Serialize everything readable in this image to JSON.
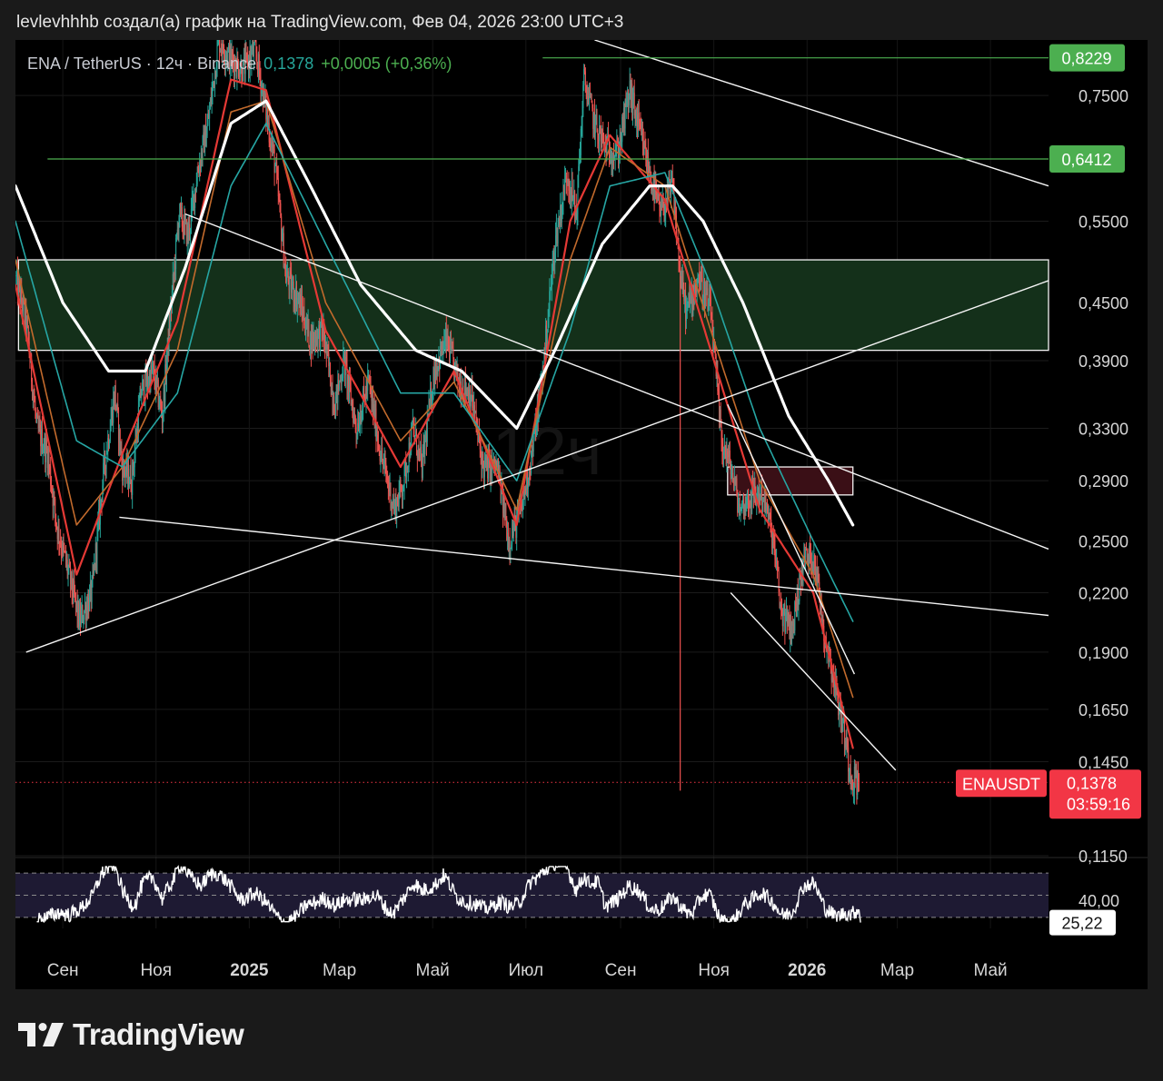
{
  "header": {
    "caption": "levlevhhhb создал(а) график на TradingView.com, Фев 04, 2026 23:00 UTC+3"
  },
  "legend": {
    "symbol": "ENA / TetherUS · 12ч · Binance",
    "last": "0,1378",
    "change": "+0,0005 (+0,36%)"
  },
  "watermark": "12ч",
  "footer": {
    "brand": "TradingView"
  },
  "colors": {
    "background": "#000000",
    "up": "#26a69a",
    "down": "#ef5350",
    "ma_white": "#ffffff",
    "ma_red": "#e53935",
    "ma_orange": "#c26a2c",
    "ma_teal": "#26a6a4",
    "zone_green": "#14301a",
    "zone_red": "#3a0f16",
    "level_green": "#4caf50",
    "price_badge": "#f23645"
  },
  "chart_data": {
    "type": "candlestick",
    "symbol": "ENAUSDT",
    "timeframe": "12ч",
    "y_scale": "log",
    "y_ticks": [
      "0,7500",
      "0,5500",
      "0,4500",
      "0,3900",
      "0,3300",
      "0,2900",
      "0,2500",
      "0,2200",
      "0,1900",
      "0,1650",
      "0,1450",
      "0,1150"
    ],
    "x_ticks": [
      "Сен",
      "Ноя",
      "2025",
      "Мар",
      "Май",
      "Июл",
      "Сен",
      "Ноя",
      "2026",
      "Мар",
      "Май"
    ],
    "x_tick_bold": [
      false,
      false,
      true,
      false,
      false,
      false,
      false,
      false,
      true,
      false,
      false
    ],
    "x_range": [
      "2024-08-01",
      "2026-06-08"
    ],
    "ylim": [
      0.115,
      0.86
    ],
    "price_path": [
      [
        "2024-08-01",
        0.48
      ],
      [
        "2024-08-08",
        0.43
      ],
      [
        "2024-08-15",
        0.33
      ],
      [
        "2024-08-22",
        0.31
      ],
      [
        "2024-08-28",
        0.26
      ],
      [
        "2024-09-05",
        0.23
      ],
      [
        "2024-09-12",
        0.205
      ],
      [
        "2024-09-20",
        0.22
      ],
      [
        "2024-09-28",
        0.3
      ],
      [
        "2024-10-05",
        0.36
      ],
      [
        "2024-10-10",
        0.3
      ],
      [
        "2024-10-16",
        0.29
      ],
      [
        "2024-10-22",
        0.36
      ],
      [
        "2024-10-30",
        0.38
      ],
      [
        "2024-11-05",
        0.34
      ],
      [
        "2024-11-10",
        0.43
      ],
      [
        "2024-11-16",
        0.56
      ],
      [
        "2024-11-22",
        0.53
      ],
      [
        "2024-11-28",
        0.62
      ],
      [
        "2024-12-05",
        0.7
      ],
      [
        "2024-12-12",
        0.86
      ],
      [
        "2024-12-20",
        0.82
      ],
      [
        "2024-12-28",
        0.8
      ],
      [
        "2025-01-05",
        0.84
      ],
      [
        "2025-01-12",
        0.72
      ],
      [
        "2025-01-18",
        0.63
      ],
      [
        "2025-01-25",
        0.48
      ],
      [
        "2025-02-03",
        0.45
      ],
      [
        "2025-02-10",
        0.41
      ],
      [
        "2025-02-18",
        0.42
      ],
      [
        "2025-02-26",
        0.35
      ],
      [
        "2025-03-04",
        0.39
      ],
      [
        "2025-03-12",
        0.33
      ],
      [
        "2025-03-20",
        0.37
      ],
      [
        "2025-03-28",
        0.31
      ],
      [
        "2025-04-06",
        0.27
      ],
      [
        "2025-04-12",
        0.29
      ],
      [
        "2025-04-18",
        0.33
      ],
      [
        "2025-04-24",
        0.3
      ],
      [
        "2025-05-02",
        0.38
      ],
      [
        "2025-05-10",
        0.41
      ],
      [
        "2025-05-18",
        0.37
      ],
      [
        "2025-05-26",
        0.36
      ],
      [
        "2025-06-03",
        0.3
      ],
      [
        "2025-06-12",
        0.3
      ],
      [
        "2025-06-20",
        0.25
      ],
      [
        "2025-06-28",
        0.27
      ],
      [
        "2025-07-05",
        0.31
      ],
      [
        "2025-07-12",
        0.38
      ],
      [
        "2025-07-20",
        0.52
      ],
      [
        "2025-07-28",
        0.62
      ],
      [
        "2025-08-03",
        0.56
      ],
      [
        "2025-08-08",
        0.78
      ],
      [
        "2025-08-15",
        0.7
      ],
      [
        "2025-08-22",
        0.66
      ],
      [
        "2025-08-30",
        0.65
      ],
      [
        "2025-09-07",
        0.76
      ],
      [
        "2025-09-14",
        0.68
      ],
      [
        "2025-09-20",
        0.62
      ],
      [
        "2025-09-27",
        0.56
      ],
      [
        "2025-10-05",
        0.6
      ],
      [
        "2025-10-10",
        0.48
      ],
      [
        "2025-10-14",
        0.44
      ],
      [
        "2025-10-22",
        0.48
      ],
      [
        "2025-10-30",
        0.44
      ],
      [
        "2025-11-06",
        0.32
      ],
      [
        "2025-11-12",
        0.3
      ],
      [
        "2025-11-18",
        0.27
      ],
      [
        "2025-11-26",
        0.28
      ],
      [
        "2025-12-03",
        0.28
      ],
      [
        "2025-12-10",
        0.25
      ],
      [
        "2025-12-15",
        0.21
      ],
      [
        "2025-12-22",
        0.2
      ],
      [
        "2025-12-30",
        0.24
      ],
      [
        "2026-01-06",
        0.24
      ],
      [
        "2026-01-12",
        0.2
      ],
      [
        "2026-01-18",
        0.18
      ],
      [
        "2026-01-24",
        0.16
      ],
      [
        "2026-01-30",
        0.14
      ],
      [
        "2026-02-04",
        0.1378
      ]
    ],
    "moving_averages": [
      {
        "color": "white",
        "path": [
          [
            "2024-08-01",
            0.6
          ],
          [
            "2024-09-01",
            0.45
          ],
          [
            "2024-10-01",
            0.38
          ],
          [
            "2024-10-25",
            0.38
          ],
          [
            "2024-11-20",
            0.49
          ],
          [
            "2024-12-20",
            0.7
          ],
          [
            "2025-01-12",
            0.74
          ],
          [
            "2025-02-10",
            0.6
          ],
          [
            "2025-03-15",
            0.47
          ],
          [
            "2025-04-20",
            0.4
          ],
          [
            "2025-05-20",
            0.38
          ],
          [
            "2025-06-25",
            0.33
          ],
          [
            "2025-07-20",
            0.4
          ],
          [
            "2025-08-20",
            0.52
          ],
          [
            "2025-09-20",
            0.6
          ],
          [
            "2025-10-05",
            0.6
          ],
          [
            "2025-10-25",
            0.55
          ],
          [
            "2025-11-20",
            0.45
          ],
          [
            "2025-12-20",
            0.34
          ],
          [
            "2026-01-15",
            0.29
          ],
          [
            "2026-01-31",
            0.26
          ]
        ]
      },
      {
        "color": "teal",
        "path": [
          [
            "2024-08-01",
            0.55
          ],
          [
            "2024-09-10",
            0.32
          ],
          [
            "2024-10-10",
            0.3
          ],
          [
            "2024-11-15",
            0.36
          ],
          [
            "2024-12-20",
            0.6
          ],
          [
            "2025-01-12",
            0.7
          ],
          [
            "2025-02-20",
            0.52
          ],
          [
            "2025-04-10",
            0.36
          ],
          [
            "2025-05-15",
            0.36
          ],
          [
            "2025-06-25",
            0.29
          ],
          [
            "2025-07-30",
            0.42
          ],
          [
            "2025-08-25",
            0.6
          ],
          [
            "2025-09-30",
            0.62
          ],
          [
            "2025-10-30",
            0.47
          ],
          [
            "2025-12-01",
            0.33
          ],
          [
            "2026-01-05",
            0.25
          ],
          [
            "2026-01-31",
            0.205
          ]
        ]
      },
      {
        "color": "orange",
        "path": [
          [
            "2024-08-01",
            0.5
          ],
          [
            "2024-09-10",
            0.26
          ],
          [
            "2024-10-10",
            0.3
          ],
          [
            "2024-11-15",
            0.4
          ],
          [
            "2024-12-20",
            0.72
          ],
          [
            "2025-01-12",
            0.74
          ],
          [
            "2025-02-20",
            0.45
          ],
          [
            "2025-04-10",
            0.32
          ],
          [
            "2025-05-15",
            0.37
          ],
          [
            "2025-06-25",
            0.27
          ],
          [
            "2025-07-30",
            0.5
          ],
          [
            "2025-08-25",
            0.66
          ],
          [
            "2025-09-30",
            0.6
          ],
          [
            "2025-10-30",
            0.42
          ],
          [
            "2025-12-01",
            0.29
          ],
          [
            "2026-01-05",
            0.23
          ],
          [
            "2026-01-31",
            0.17
          ]
        ]
      },
      {
        "color": "red",
        "path": [
          [
            "2024-08-01",
            0.47
          ],
          [
            "2024-09-10",
            0.23
          ],
          [
            "2024-10-10",
            0.31
          ],
          [
            "2024-11-15",
            0.43
          ],
          [
            "2024-12-20",
            0.78
          ],
          [
            "2025-01-12",
            0.76
          ],
          [
            "2025-02-20",
            0.42
          ],
          [
            "2025-04-10",
            0.3
          ],
          [
            "2025-05-15",
            0.38
          ],
          [
            "2025-06-25",
            0.26
          ],
          [
            "2025-07-30",
            0.55
          ],
          [
            "2025-08-25",
            0.68
          ],
          [
            "2025-09-30",
            0.58
          ],
          [
            "2025-10-30",
            0.4
          ],
          [
            "2025-12-01",
            0.27
          ],
          [
            "2026-01-05",
            0.22
          ],
          [
            "2026-01-31",
            0.15
          ]
        ]
      }
    ],
    "horizontal_levels": [
      {
        "value": 0.8229,
        "label": "0,8229",
        "from": "2025-07-12"
      },
      {
        "value": 0.6412,
        "label": "0,6412",
        "from": "2024-08-22"
      }
    ],
    "zones": [
      {
        "from": "2024-08-03",
        "to": "2026-06-08",
        "low": 0.4,
        "high": 0.5,
        "color": "green"
      },
      {
        "from": "2025-11-10",
        "to": "2026-01-31",
        "low": 0.28,
        "high": 0.3,
        "color": "red"
      }
    ],
    "trend_lines": [
      {
        "p1": [
          "2025-08-15",
          0.86
        ],
        "p2": [
          "2026-06-08",
          0.6
        ]
      },
      {
        "p1": [
          "2024-11-20",
          0.56
        ],
        "p2": [
          "2026-06-08",
          0.245
        ]
      },
      {
        "p1": [
          "2024-10-08",
          0.265
        ],
        "p2": [
          "2026-06-08",
          0.208
        ]
      },
      {
        "p1": [
          "2024-08-08",
          0.19
        ],
        "p2": [
          "2026-06-08",
          0.475
        ]
      },
      {
        "p1": [
          "2025-11-12",
          0.22
        ],
        "p2": [
          "2026-02-28",
          0.142
        ]
      },
      {
        "p1": [
          "2025-11-10",
          0.35
        ],
        "p2": [
          "2026-02-01",
          0.18
        ]
      }
    ],
    "current_price": {
      "label": "ENAUSDT",
      "value": "0,1378",
      "countdown": "03:59:16"
    },
    "oscillator": {
      "levels": [
        70,
        50,
        30
      ],
      "ylim": [
        20,
        80
      ],
      "tick": "40,00",
      "last": "25,22",
      "last_value": 25.22,
      "band_color": "#1e1a33"
    }
  }
}
